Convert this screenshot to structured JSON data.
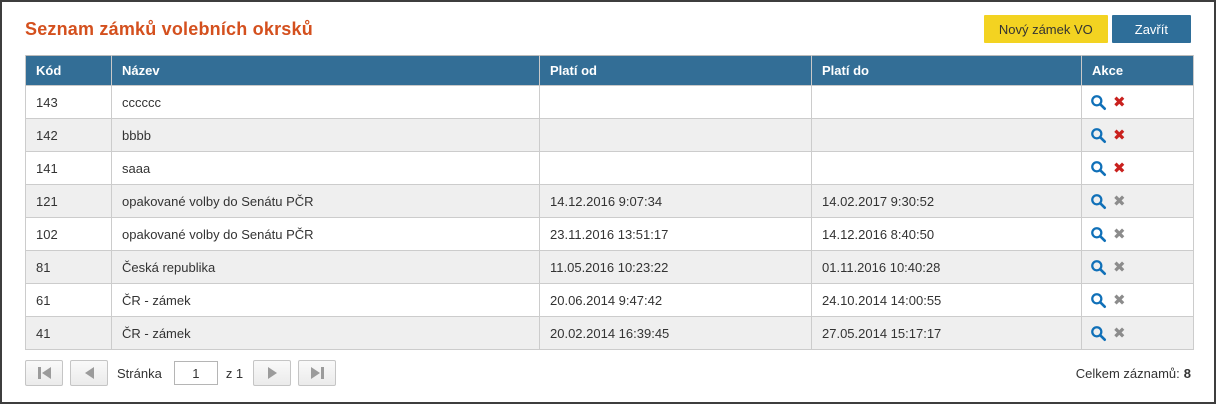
{
  "colors": {
    "title_color": "#d4501e",
    "header_bg": "#336e96",
    "button_yellow_bg": "#f3d321",
    "button_yellow_text": "#333333",
    "button_blue_bg": "#2e6e99",
    "button_blue_text": "#ffffff",
    "search_icon_color": "#1070b8",
    "delete_active_color": "#c9211e",
    "delete_disabled_color": "#8c8c8c",
    "stripe_bg": "#efefef"
  },
  "header": {
    "title": "Seznam zámků volebních okrsků",
    "buttons": {
      "new_lock": "Nový zámek VO",
      "close": "Zavřít"
    }
  },
  "table": {
    "headers": [
      {
        "key": "kod",
        "label": "Kód"
      },
      {
        "key": "nazev",
        "label": "Název"
      },
      {
        "key": "plati_od",
        "label": "Platí od"
      },
      {
        "key": "plati_do",
        "label": "Platí do"
      },
      {
        "key": "akce",
        "label": "Akce"
      }
    ],
    "icons": {
      "search": "magnifier",
      "delete_glyph": "✖"
    },
    "rows": [
      {
        "kod": "143",
        "nazev": "cccccc",
        "plati_od": "",
        "plati_do": "",
        "delete_active": true
      },
      {
        "kod": "142",
        "nazev": "bbbb",
        "plati_od": "",
        "plati_do": "",
        "delete_active": true
      },
      {
        "kod": "141",
        "nazev": "saaa",
        "plati_od": "",
        "plati_do": "",
        "delete_active": true
      },
      {
        "kod": "121",
        "nazev": "opakované volby do Senátu PČR",
        "plati_od": "14.12.2016 9:07:34",
        "plati_do": "14.02.2017 9:30:52",
        "delete_active": false
      },
      {
        "kod": "102",
        "nazev": "opakované volby do Senátu PČR",
        "plati_od": "23.11.2016 13:51:17",
        "plati_do": "14.12.2016 8:40:50",
        "delete_active": false
      },
      {
        "kod": "81",
        "nazev": "Česká republika",
        "plati_od": "11.05.2016 10:23:22",
        "plati_do": "01.11.2016 10:40:28",
        "delete_active": false
      },
      {
        "kod": "61",
        "nazev": "ČR - zámek",
        "plati_od": "20.06.2014 9:47:42",
        "plati_do": "24.10.2014 14:00:55",
        "delete_active": false
      },
      {
        "kod": "41",
        "nazev": "ČR - zámek",
        "plati_od": "20.02.2014 16:39:45",
        "plati_do": "27.05.2014 15:17:17",
        "delete_active": false
      }
    ]
  },
  "pagination": {
    "first_icon": "skip-to-first",
    "prev_icon": "arrow-left",
    "page_label": "Stránka",
    "page_value": "1",
    "of_label": "z 1",
    "next_icon": "arrow-right",
    "last_icon": "skip-to-last"
  },
  "footer": {
    "total_label": "Celkem záznamů:",
    "total_value": "8"
  }
}
